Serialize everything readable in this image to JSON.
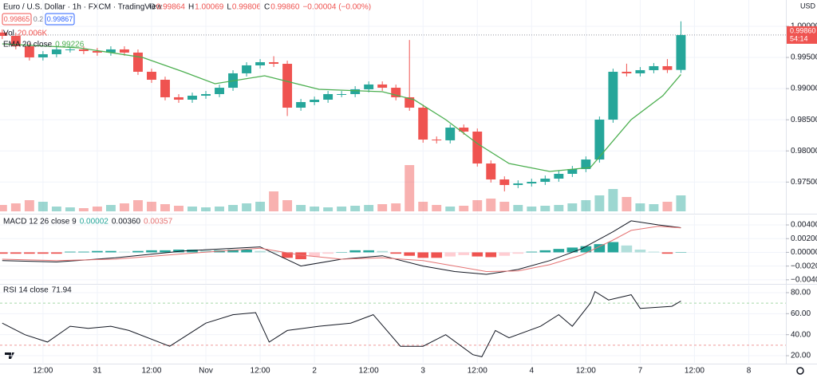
{
  "header": {
    "symbol": "Euro / U.S. Dollar · 1h · FXCM · TradingView",
    "ohlc": [
      {
        "label": "O",
        "value": "0.99864"
      },
      {
        "label": "H",
        "value": "1.00069"
      },
      {
        "label": "L",
        "value": "0.99806"
      },
      {
        "label": "C",
        "value": "0.99860"
      }
    ],
    "change": "−0.00004 (−0.00%)",
    "sell": "0.99865",
    "spread": "0.2",
    "buy": "0.99867",
    "currency": "USD"
  },
  "chart_data": [
    {
      "type": "candlestick",
      "up_color": "#26a69a",
      "down_color": "#ef5350",
      "grid": true,
      "xlim": [
        -0.5,
        173.2
      ],
      "ylim": [
        0.96992,
        1.00422
      ],
      "xticks": [
        {
          "value": 9,
          "label": "12:00"
        },
        {
          "value": 21,
          "label": "31"
        },
        {
          "value": 33,
          "label": "12:00"
        },
        {
          "value": 45,
          "label": "Nov"
        },
        {
          "value": 57,
          "label": "12:00"
        },
        {
          "value": 69,
          "label": "2"
        },
        {
          "value": 81,
          "label": "12:00"
        },
        {
          "value": 93,
          "label": "3"
        },
        {
          "value": 105,
          "label": "12:00"
        },
        {
          "value": 117,
          "label": "4"
        },
        {
          "value": 129,
          "label": "12:00"
        },
        {
          "value": 141,
          "label": "7"
        },
        {
          "value": 153,
          "label": "12:00"
        },
        {
          "value": 165,
          "label": "8"
        }
      ],
      "yticks": [
        {
          "value": 1,
          "label": "1.00000"
        },
        {
          "value": 0.995,
          "label": "0.99500"
        },
        {
          "value": 0.99,
          "label": "0.99000"
        },
        {
          "value": 0.985,
          "label": "0.98500"
        },
        {
          "value": 0.98,
          "label": "0.98000"
        },
        {
          "value": 0.975,
          "label": "0.97500"
        }
      ],
      "x": [
        0,
        3,
        6,
        9,
        12,
        15,
        18,
        21,
        24,
        27,
        30,
        33,
        36,
        39,
        42,
        45,
        48,
        51,
        54,
        57,
        60,
        63,
        66,
        69,
        72,
        75,
        78,
        81,
        84,
        87,
        90,
        93,
        96,
        99,
        102,
        105,
        108,
        111,
        114,
        117,
        120,
        123,
        126,
        129,
        132,
        135,
        138,
        141,
        144,
        147,
        150
      ],
      "open": [
        0.999,
        0.99846,
        0.9968,
        0.99501,
        0.99552,
        0.99629,
        0.99629,
        0.99603,
        0.99578,
        0.99629,
        0.99578,
        0.9927,
        0.99142,
        0.98861,
        0.98822,
        0.98886,
        0.98912,
        0.99014,
        0.99245,
        0.99373,
        0.99424,
        0.99398,
        0.98694,
        0.98784,
        0.98822,
        0.98912,
        0.98912,
        0.98989,
        0.99066,
        0.99014,
        0.98861,
        0.98694,
        0.98182,
        0.9817,
        0.98374,
        0.9831,
        0.97798,
        0.97542,
        0.97453,
        0.97478,
        0.97504,
        0.97555,
        0.97632,
        0.97709,
        0.97862,
        0.98502,
        0.9927,
        0.99245,
        0.99296,
        0.9936,
        0.993
      ],
      "high": [
        0.9995,
        0.99896,
        0.9973,
        0.99602,
        0.99679,
        0.99679,
        0.99679,
        0.99653,
        0.99679,
        0.99679,
        0.99628,
        0.9932,
        0.99192,
        0.98911,
        0.98936,
        0.98962,
        0.99064,
        0.99295,
        0.99423,
        0.99474,
        0.9952,
        0.99448,
        0.98834,
        0.98872,
        0.98962,
        0.98962,
        0.99039,
        0.99116,
        0.99116,
        0.99064,
        0.9978,
        0.98744,
        0.98232,
        0.98424,
        0.98424,
        0.9836,
        0.97848,
        0.97592,
        0.97528,
        0.97554,
        0.97605,
        0.97682,
        0.97759,
        0.97912,
        0.98552,
        0.9932,
        0.994,
        0.99346,
        0.9941,
        0.99474,
        1.0008
      ],
      "low": [
        0.99796,
        0.9963,
        0.99451,
        0.99451,
        0.99502,
        0.99579,
        0.99553,
        0.99528,
        0.99528,
        0.99528,
        0.9922,
        0.99092,
        0.98811,
        0.98772,
        0.98772,
        0.98836,
        0.98862,
        0.98964,
        0.99195,
        0.99323,
        0.99348,
        0.9856,
        0.98644,
        0.98734,
        0.98772,
        0.98862,
        0.98862,
        0.98939,
        0.98964,
        0.98811,
        0.98644,
        0.98132,
        0.9812,
        0.9812,
        0.9826,
        0.97748,
        0.97492,
        0.9735,
        0.97403,
        0.97428,
        0.97454,
        0.97505,
        0.97582,
        0.97659,
        0.97812,
        0.98452,
        0.99195,
        0.99195,
        0.99246,
        0.9925,
        0.9925
      ],
      "close": [
        0.99846,
        0.9968,
        0.99501,
        0.99552,
        0.99629,
        0.99629,
        0.99603,
        0.99578,
        0.99629,
        0.99578,
        0.9927,
        0.99142,
        0.98861,
        0.98822,
        0.98886,
        0.98912,
        0.99014,
        0.99245,
        0.99373,
        0.99424,
        0.99398,
        0.98694,
        0.98784,
        0.98822,
        0.98912,
        0.98912,
        0.98989,
        0.99066,
        0.99014,
        0.98861,
        0.98694,
        0.98182,
        0.9817,
        0.98374,
        0.9831,
        0.97798,
        0.97542,
        0.97453,
        0.97478,
        0.97504,
        0.97555,
        0.97632,
        0.97709,
        0.97862,
        0.98502,
        0.9927,
        0.99245,
        0.99296,
        0.9936,
        0.993,
        0.9986
      ],
      "volume": {
        "name": "Vol",
        "readout": "20.006K",
        "vlim": [
          0,
          70
        ],
        "values": [
          8,
          10,
          14,
          12,
          6,
          5,
          4,
          6,
          8,
          10,
          14,
          12,
          9,
          7,
          6,
          5,
          6,
          8,
          10,
          12,
          25,
          14,
          8,
          6,
          5,
          6,
          7,
          8,
          9,
          10,
          58,
          12,
          8,
          6,
          7,
          14,
          16,
          12,
          8,
          6,
          7,
          8,
          10,
          14,
          20,
          28,
          18,
          10,
          9,
          12,
          20.006
        ]
      },
      "ema": {
        "name": "EMA 20 close",
        "readout": "0.99226",
        "color": "#4caf50",
        "x": [
          0,
          17,
          31,
          40,
          47,
          58,
          70,
          84,
          91,
          98,
          105,
          112,
          121,
          130,
          139,
          146,
          150
        ],
        "values": [
          0.99718,
          0.99654,
          0.99501,
          0.9927,
          0.99078,
          0.99206,
          0.98989,
          0.9895,
          0.98822,
          0.98502,
          0.98118,
          0.97798,
          0.9767,
          0.97734,
          0.98502,
          0.98886,
          0.99226
        ]
      },
      "last_price": {
        "value": 0.9986,
        "label": "0.99860"
      },
      "countdown": "54:14"
    },
    {
      "type": "macd",
      "title": "MACD 12 26 close 9",
      "ylim": [
        -0.0046,
        0.0054
      ],
      "yticks": [
        {
          "value": 0.004,
          "label": "0.00400"
        },
        {
          "value": 0.002,
          "label": "0.00200"
        },
        {
          "value": 0,
          "label": "0.00000"
        },
        {
          "value": -0.002,
          "label": "−0.00200"
        },
        {
          "value": -0.004,
          "label": "−0.00400"
        }
      ],
      "histogram": {
        "readout": "0.00002",
        "values": [
          -0.0002,
          -0.0002,
          -0.0002,
          -0.0002,
          -0.0002,
          0.0001,
          0.0001,
          0.0002,
          0.0002,
          0.0001,
          0.0002,
          0.0003,
          0.0003,
          0.0004,
          0.0004,
          0.0003,
          0.0003,
          0.0004,
          0.0004,
          0.0002,
          0.0001,
          -0.0008,
          -0.001,
          -0.0006,
          -0.0002,
          0,
          0.0003,
          0.0003,
          0.0002,
          -0.0002,
          -0.0005,
          -0.0008,
          -0.0008,
          -0.0006,
          -0.0004,
          -0.0006,
          -0.0007,
          -0.0005,
          -0.0002,
          0.0001,
          0.0003,
          0.0005,
          0.0007,
          0.0009,
          0.0012,
          0.0015,
          0.001,
          0.0004,
          0.0001,
          -0.0002,
          2e-05
        ]
      },
      "line_x": [
        0,
        12,
        25,
        40,
        57,
        66,
        75,
        84,
        93,
        100,
        107,
        114,
        121,
        128,
        135,
        139,
        145,
        150
      ],
      "series": [
        {
          "name": "MACD",
          "color": "#131722",
          "readout": "0.00360",
          "values": [
            -0.0012,
            -0.0014,
            -0.0008,
            0.0002,
            0.0008,
            -0.002,
            -0.001,
            -0.0005,
            -0.002,
            -0.0028,
            -0.0032,
            -0.0025,
            -0.0012,
            0.0005,
            0.003,
            0.0046,
            0.004,
            0.0036
          ]
        },
        {
          "name": "Signal",
          "color": "#e57373",
          "readout": "0.00357",
          "values": [
            -0.001,
            -0.0012,
            -0.001,
            -0.0002,
            0.0006,
            -0.0004,
            -0.001,
            -0.0008,
            -0.0012,
            -0.002,
            -0.0028,
            -0.0027,
            -0.0018,
            -0.0004,
            0.0018,
            0.0032,
            0.0038,
            0.00357
          ]
        }
      ]
    },
    {
      "type": "rsi",
      "name": "RSI 14 close",
      "readout": "71.94",
      "color": "#131722",
      "ylim": [
        13.2,
        86.8
      ],
      "bands": [
        70,
        30
      ],
      "yticks": [
        {
          "value": 80,
          "label": "80.00"
        },
        {
          "value": 60,
          "label": "60.00"
        },
        {
          "value": 40,
          "label": "40.00"
        },
        {
          "value": 20,
          "label": "20.00"
        }
      ],
      "x": [
        0,
        5,
        10,
        15,
        19,
        24,
        28,
        37,
        45,
        51,
        56,
        59,
        63,
        70,
        77,
        82,
        88,
        93,
        98,
        104,
        106,
        109,
        112,
        119,
        123,
        126,
        130,
        131,
        134,
        139,
        141,
        148,
        150
      ],
      "values": [
        51,
        40,
        33,
        48,
        46,
        48,
        44,
        29,
        51,
        59,
        61,
        33,
        44,
        48,
        51,
        59,
        29,
        29,
        40,
        21,
        19,
        44,
        37,
        48,
        59,
        48,
        70,
        81,
        73,
        78,
        65,
        67,
        71.94
      ]
    }
  ]
}
